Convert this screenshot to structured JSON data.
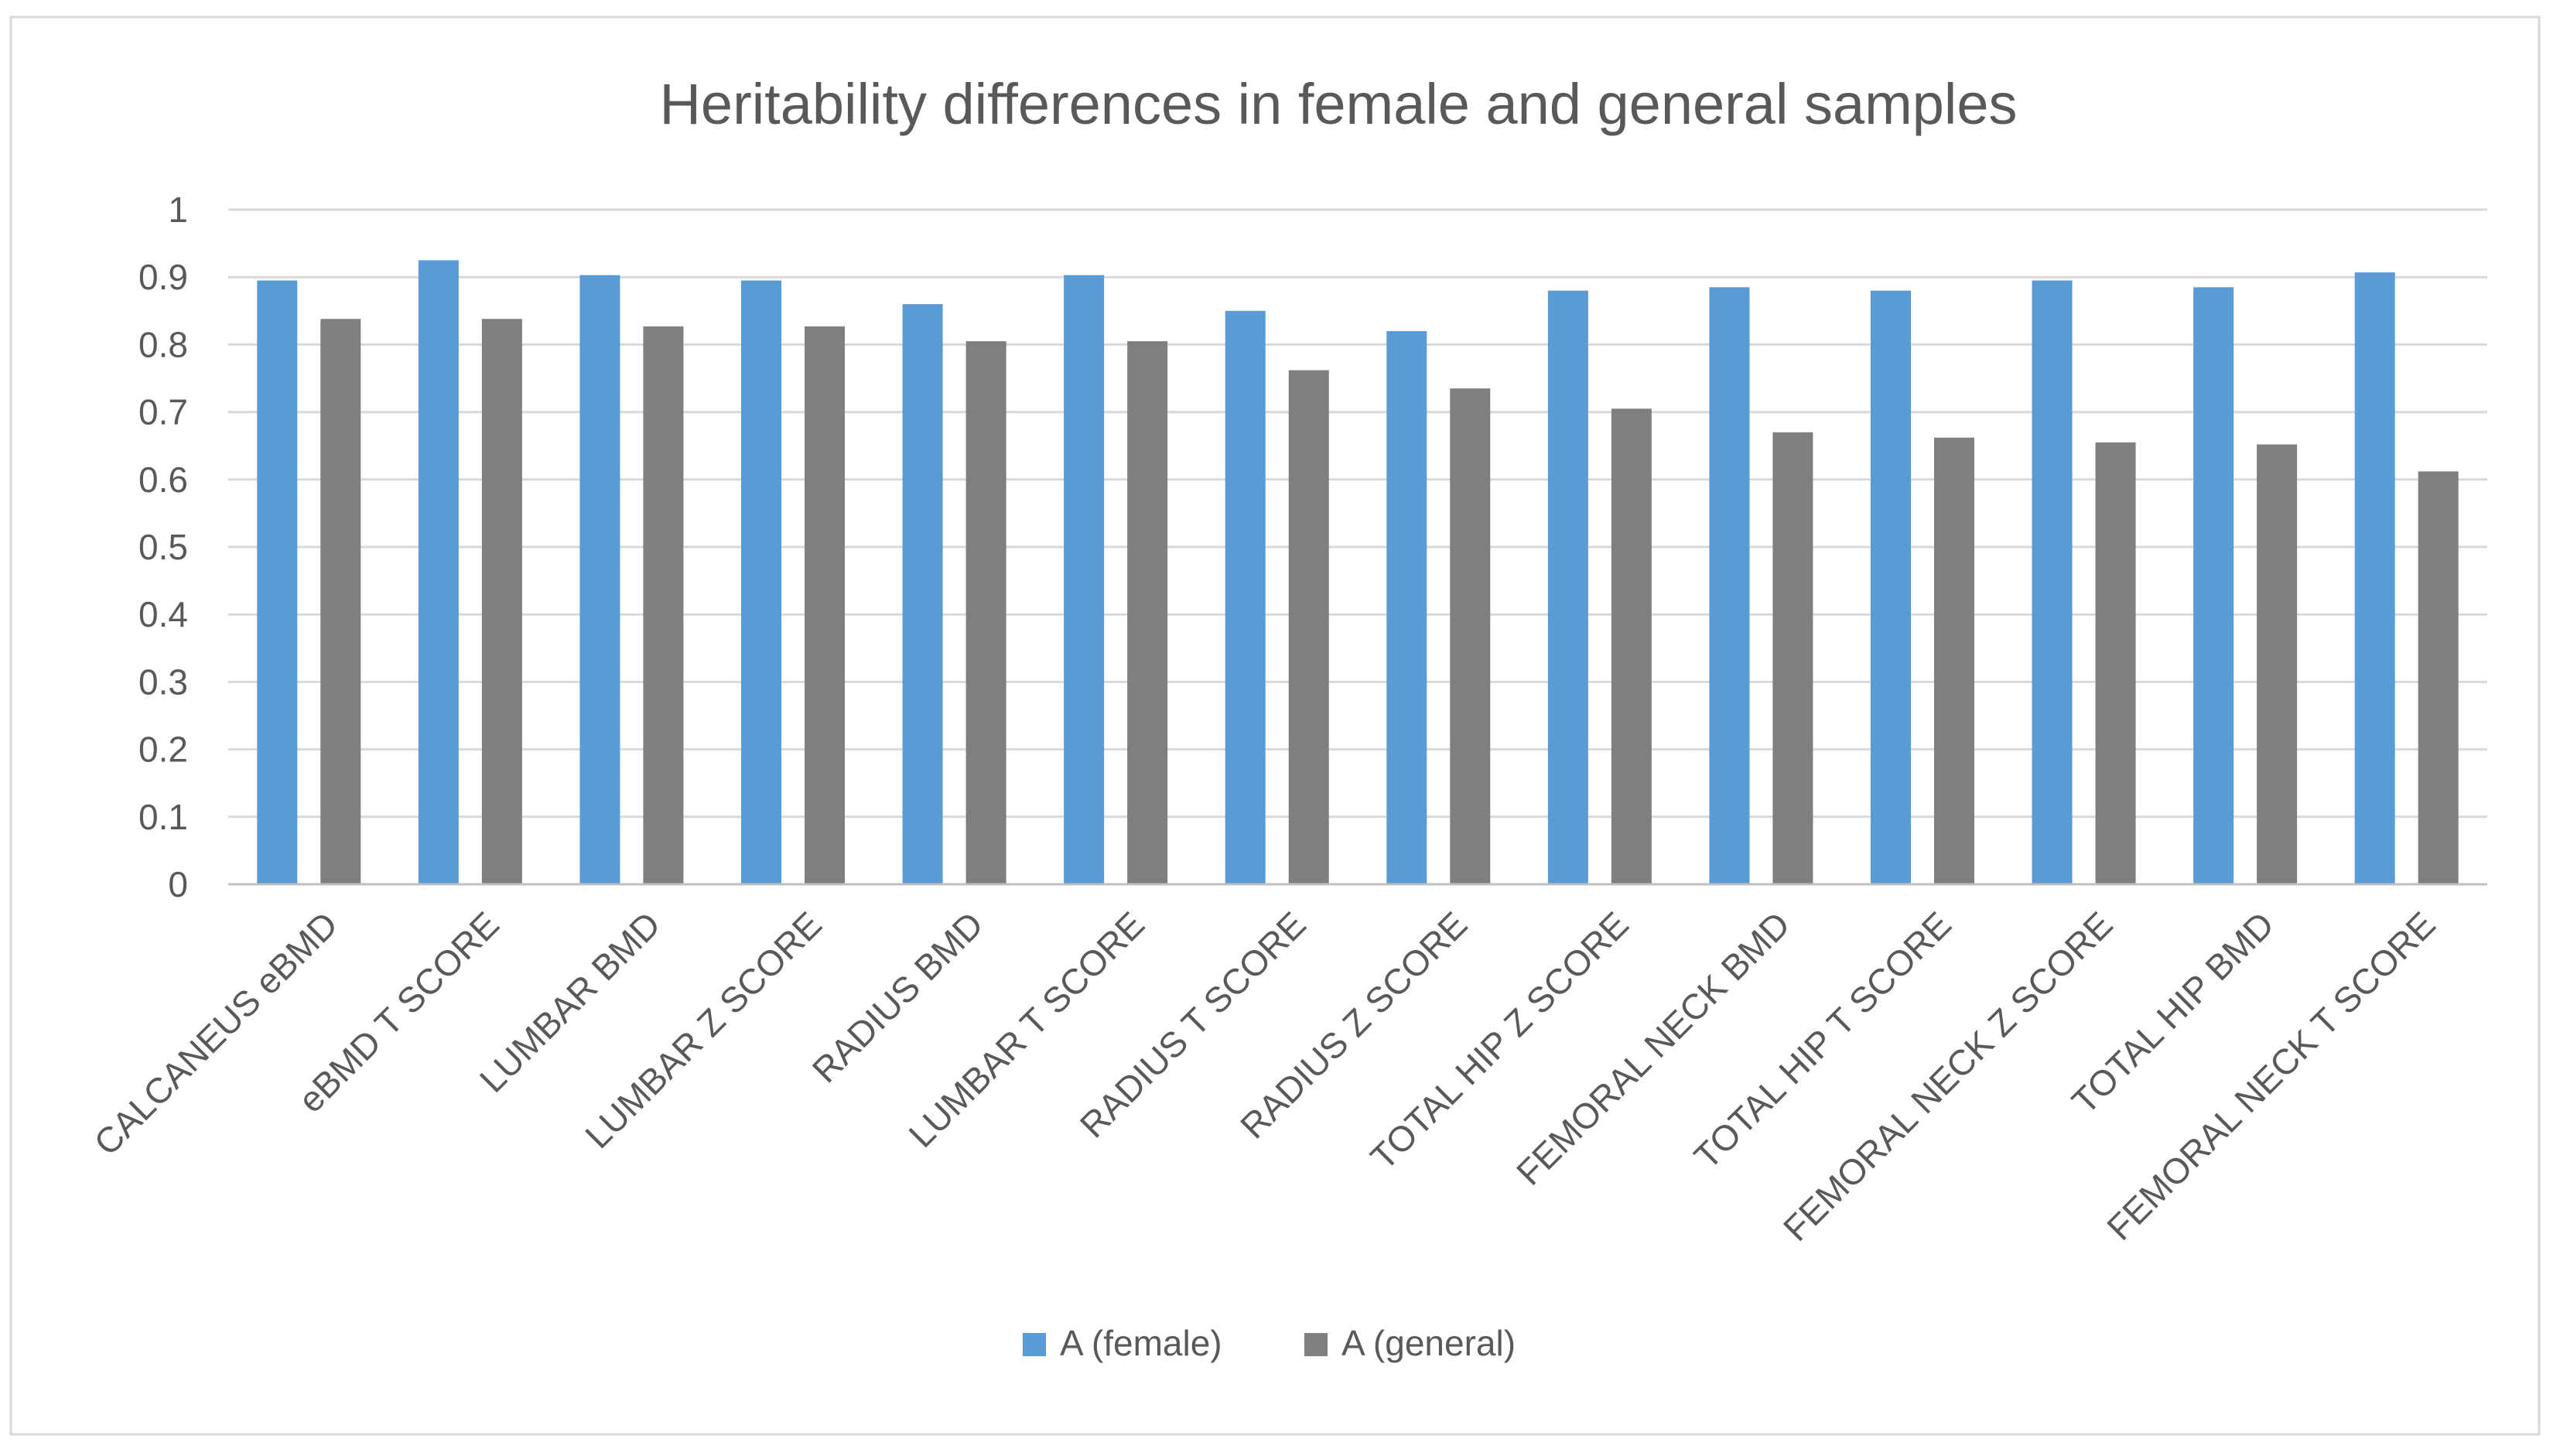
{
  "chart_data": {
    "type": "bar",
    "title": "Heritability differences in female and general samples",
    "categories": [
      "CALCANEUS eBMD",
      "eBMD T SCORE",
      "LUMBAR BMD",
      "LUMBAR Z SCORE",
      "RADIUS BMD",
      "LUMBAR T SCORE",
      "RADIUS T SCORE",
      "RADIUS Z SCORE",
      "TOTAL HIP Z SCORE",
      "FEMORAL NECK BMD",
      "TOTAL HIP T SCORE",
      "FEMORAL NECK Z SCORE",
      "TOTAL HIP BMD",
      "FEMORAL NECK T SCORE"
    ],
    "series": [
      {
        "name": "A (female)",
        "color": "#5b9bd5",
        "values": [
          0.895,
          0.925,
          0.903,
          0.895,
          0.86,
          0.903,
          0.85,
          0.82,
          0.88,
          0.885,
          0.88,
          0.895,
          0.885,
          0.907
        ]
      },
      {
        "name": "A (general)",
        "color": "#7f7f7f",
        "values": [
          0.838,
          0.838,
          0.827,
          0.827,
          0.805,
          0.805,
          0.762,
          0.735,
          0.705,
          0.67,
          0.662,
          0.655,
          0.652,
          0.612
        ]
      }
    ],
    "xlabel": "",
    "ylabel": "",
    "ylim": [
      0,
      1
    ],
    "yticks": [
      "0",
      "0.1",
      "0.2",
      "0.3",
      "0.4",
      "0.5",
      "0.6",
      "0.7",
      "0.8",
      "0.9",
      "1"
    ],
    "grid": true,
    "legend_position": "bottom"
  }
}
